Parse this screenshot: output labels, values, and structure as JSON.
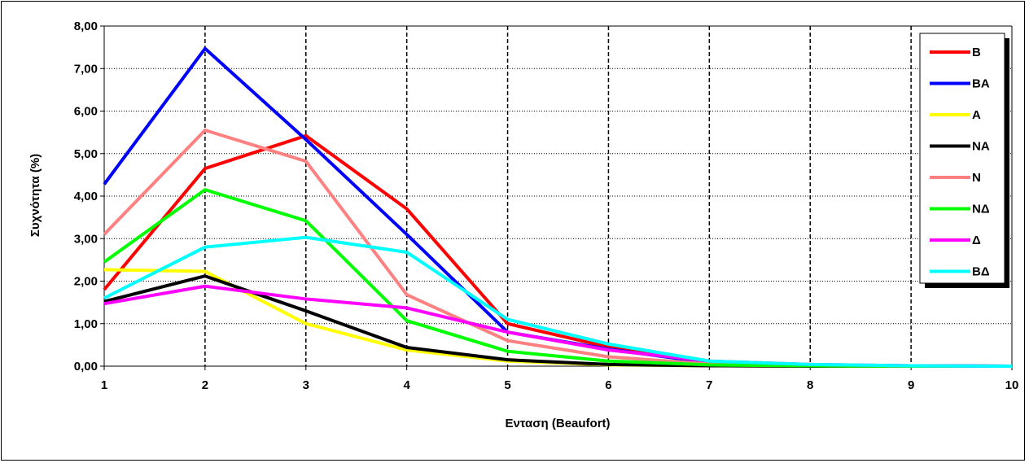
{
  "chart_data": {
    "type": "line",
    "title": "",
    "xlabel": "Ενταση (Beaufort)",
    "ylabel": "Συχνότητα (%)",
    "x": [
      1,
      2,
      3,
      4,
      5,
      6,
      7,
      8,
      9,
      10
    ],
    "x_tick_labels": [
      "1",
      "2",
      "3",
      "4",
      "5",
      "6",
      "7",
      "8",
      "9",
      "10"
    ],
    "ylim": [
      0,
      8
    ],
    "y_tick_labels": [
      "0,00",
      "1,00",
      "2,00",
      "3,00",
      "4,00",
      "5,00",
      "6,00",
      "7,00",
      "8,00"
    ],
    "grid": "dashed vertical at each x, dotted horizontal at each y",
    "legend_position": "right",
    "series": [
      {
        "name": "Β",
        "color": "#ff0000",
        "values": [
          1.8,
          4.65,
          5.42,
          3.7,
          1.0,
          0.45,
          0.1,
          0.03,
          0.01,
          0.0
        ]
      },
      {
        "name": "ΒΑ",
        "color": "#0000ff",
        "values": [
          4.28,
          7.47,
          5.33,
          3.1,
          0.8,
          0.4,
          0.08,
          0.02,
          0.01,
          0.0
        ]
      },
      {
        "name": "Α",
        "color": "#ffff00",
        "values": [
          2.27,
          2.23,
          1.0,
          0.38,
          0.12,
          0.03,
          0.01,
          0.0,
          0.0,
          0.0
        ]
      },
      {
        "name": "ΝΑ",
        "color": "#000000",
        "values": [
          1.52,
          2.12,
          1.3,
          0.44,
          0.15,
          0.04,
          0.01,
          0.0,
          0.0,
          0.0
        ]
      },
      {
        "name": "Ν",
        "color": "#ff8080",
        "values": [
          3.1,
          5.55,
          4.82,
          1.68,
          0.6,
          0.22,
          0.05,
          0.01,
          0.0,
          0.0
        ]
      },
      {
        "name": "ΝΔ",
        "color": "#00ff00",
        "values": [
          2.45,
          4.15,
          3.42,
          1.07,
          0.35,
          0.12,
          0.03,
          0.01,
          0.0,
          0.0
        ]
      },
      {
        "name": "Δ",
        "color": "#ff00ff",
        "values": [
          1.47,
          1.88,
          1.58,
          1.37,
          0.8,
          0.38,
          0.12,
          0.04,
          0.01,
          0.0
        ]
      },
      {
        "name": "ΒΔ",
        "color": "#00ffff",
        "values": [
          1.6,
          2.8,
          3.03,
          2.68,
          1.1,
          0.52,
          0.12,
          0.04,
          0.01,
          0.0
        ]
      }
    ]
  }
}
